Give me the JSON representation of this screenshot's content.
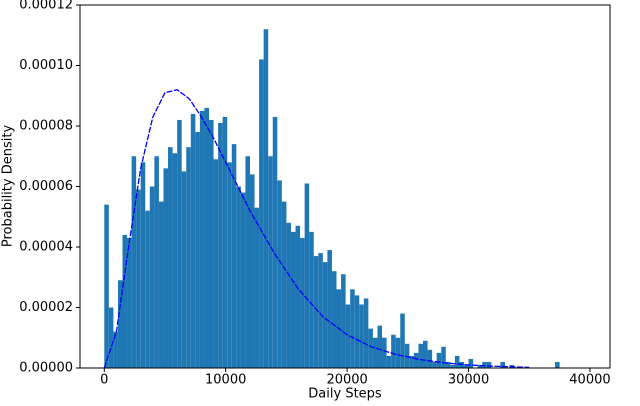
{
  "chart_data": {
    "type": "histogram",
    "xlabel": "Daily Steps",
    "ylabel": "Probability Density",
    "bins": [
      0,
      375,
      750,
      1125,
      1500,
      1875,
      2250,
      2625,
      3000,
      3375,
      3750,
      4125,
      4500,
      4875,
      5250,
      5625,
      6000,
      6375,
      6750,
      7125,
      7500,
      7875,
      8250,
      8625,
      9000,
      9375,
      9750,
      10125,
      10500,
      10875,
      11250,
      11625,
      12000,
      12375,
      12750,
      13125,
      13500,
      13875,
      14250,
      14625,
      15000,
      15375,
      15750,
      16125,
      16500,
      16875,
      17250,
      17625,
      18000,
      18375,
      18750,
      19125,
      19500,
      19875,
      20250,
      20625,
      21000,
      21375,
      21750,
      22125,
      22500,
      22875,
      23250,
      23625,
      24000,
      24375,
      24750,
      25125,
      25500,
      25875,
      26250,
      26625,
      27000,
      27375,
      27750,
      28125,
      28500,
      28875,
      29250,
      29625,
      30000,
      30375,
      30750,
      31125,
      31500,
      31875,
      32250,
      32625,
      33000,
      33375,
      33750,
      34125,
      34500,
      34875,
      35250,
      35625,
      36000,
      36375,
      36750,
      37125,
      37500
    ],
    "values": [
      5.4e-05,
      2e-05,
      1.2e-05,
      2.9e-05,
      4.4e-05,
      4.3e-05,
      7e-05,
      5.9e-05,
      6.8e-05,
      5.2e-05,
      6e-05,
      7e-05,
      5.5e-05,
      6.6e-05,
      7.3e-05,
      7.1e-05,
      8.2e-05,
      6.5e-05,
      7.3e-05,
      8.4e-05,
      7.8e-05,
      8.5e-05,
      8.6e-05,
      8.2e-05,
      6.9e-05,
      8.1e-05,
      8.3e-05,
      6.8e-05,
      7.4e-05,
      6e-05,
      5.8e-05,
      7e-05,
      6.4e-05,
      5.3e-05,
      0.000102,
      0.000112,
      7e-05,
      8.3e-05,
      6.2e-05,
      5.5e-05,
      4.8e-05,
      4.5e-05,
      4.7e-05,
      4.3e-05,
      6.1e-05,
      4.5e-05,
      3.7e-05,
      3.8e-05,
      3.5e-05,
      3.9e-05,
      3.2e-05,
      2.6e-05,
      3.1e-05,
      2.1e-05,
      2.6e-05,
      2.4e-05,
      2.1e-05,
      2.3e-05,
      1.3e-05,
      1e-05,
      1.4e-05,
      1e-05,
      4e-06,
      1.1e-05,
      1e-05,
      1.8e-05,
      8e-06,
      4e-06,
      5e-06,
      8e-06,
      9e-06,
      6e-06,
      2e-06,
      5e-06,
      7e-06,
      2e-06,
      1e-06,
      4e-06,
      2e-06,
      1e-06,
      3e-06,
      0,
      1e-06,
      2e-06,
      2e-06,
      0,
      0,
      2e-06,
      0,
      1e-06,
      0,
      0,
      0,
      0,
      0,
      0,
      0,
      0,
      0,
      2e-06
    ],
    "color": "#1f77b4",
    "fit": {
      "color": "#0000ff",
      "x": [
        0,
        1000,
        2000,
        3000,
        4000,
        5000,
        6000,
        7000,
        8000,
        9000,
        10000,
        12000,
        14000,
        16000,
        18000,
        20000,
        22000,
        24000,
        26000,
        28000,
        30000,
        32000,
        35000
      ],
      "y": [
        0,
        1.2e-05,
        4e-05,
        6.6e-05,
        8.3e-05,
        9.1e-05,
        9.2e-05,
        8.9e-05,
        8.3e-05,
        7.6e-05,
        6.8e-05,
        5.2e-05,
        3.8e-05,
        2.6e-05,
        1.7e-05,
        1.1e-05,
        7e-06,
        4.5e-06,
        2.8e-06,
        1.7e-06,
        1e-06,
        6e-07,
        2e-07
      ]
    },
    "xlim": [
      -2000,
      41650
    ],
    "ylim": [
      0,
      0.00012
    ],
    "xticks": [
      0,
      10000,
      20000,
      30000,
      40000
    ],
    "yticks": [
      {
        "value": 0,
        "label": "0.00000"
      },
      {
        "value": 2e-05,
        "label": "0.00002"
      },
      {
        "value": 4e-05,
        "label": "0.00004"
      },
      {
        "value": 6e-05,
        "label": "0.00006"
      },
      {
        "value": 8e-05,
        "label": "0.00008"
      },
      {
        "value": 0.0001,
        "label": "0.00010"
      },
      {
        "value": 0.00012,
        "label": "0.00012"
      }
    ]
  }
}
